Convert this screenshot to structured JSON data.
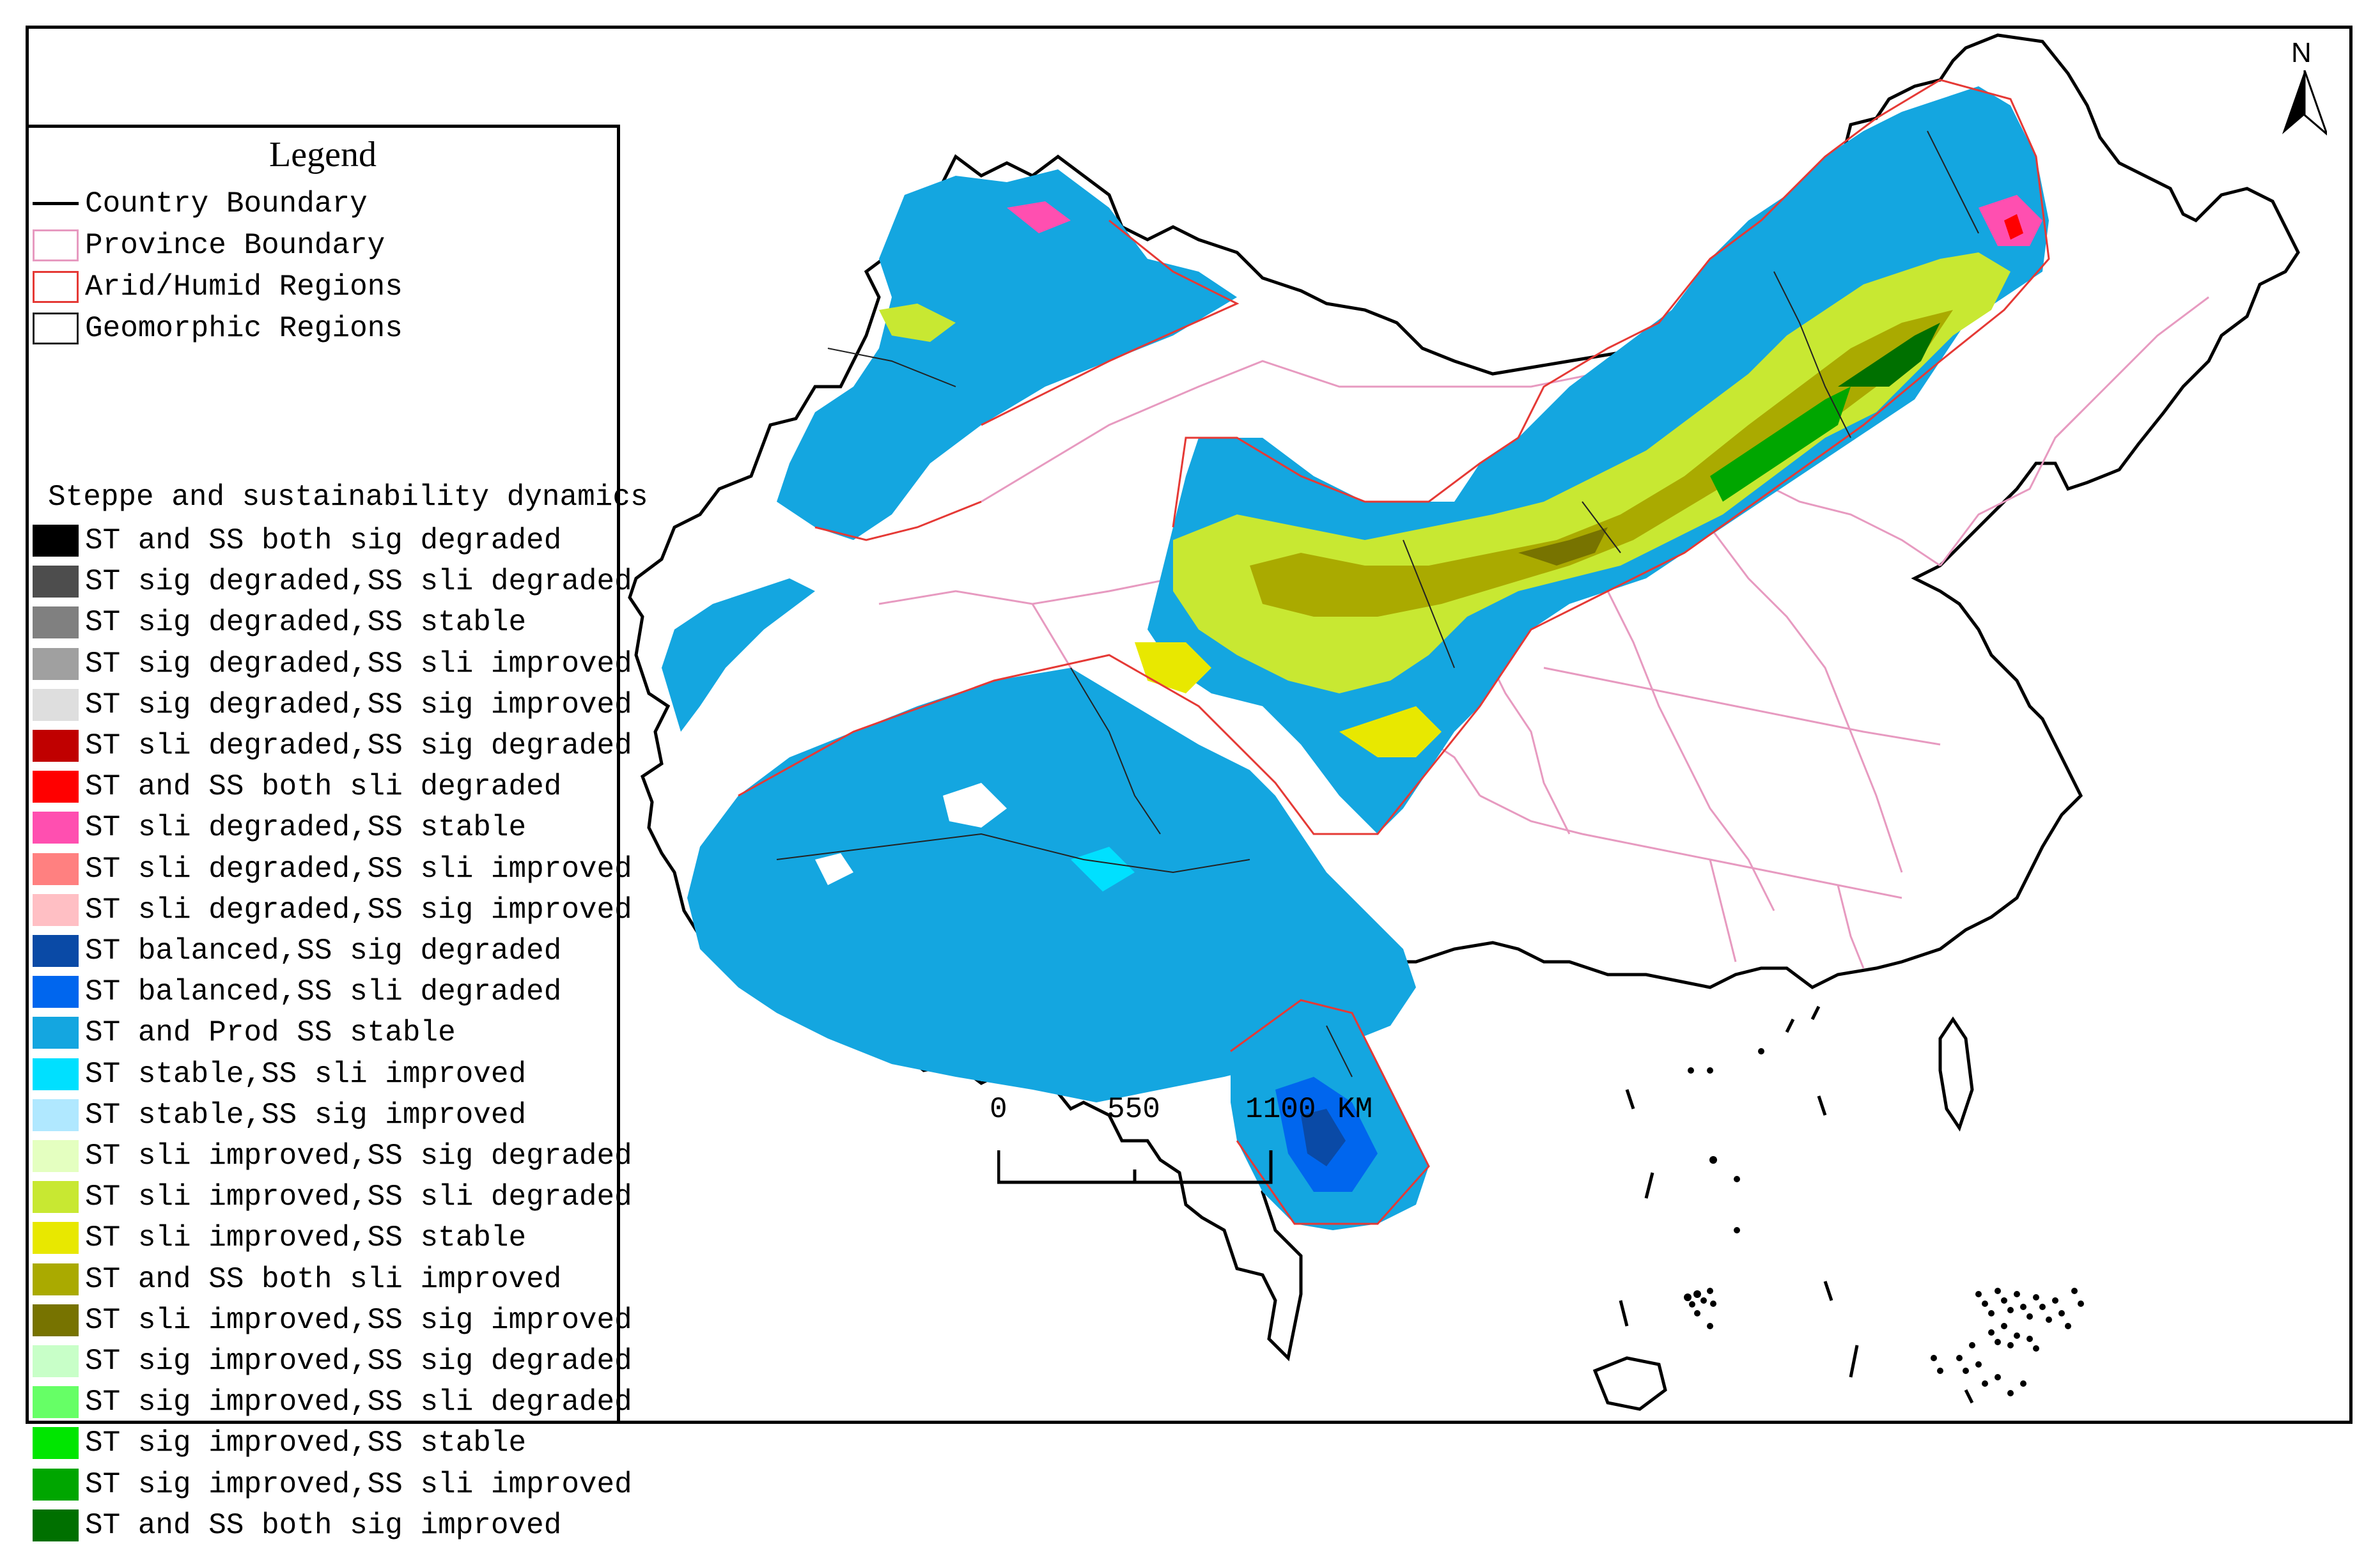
{
  "legend": {
    "title": "Legend",
    "boundaries": [
      {
        "label": "Country Boundary",
        "symbol": "line"
      },
      {
        "label": "Province Boundary",
        "symbol": "pbox"
      },
      {
        "label": "Arid/Humid Regions",
        "symbol": "rbox"
      },
      {
        "label": "Geomorphic Regions",
        "symbol": "kbox"
      }
    ],
    "dynamics_title": "Steppe and sustainability dynamics",
    "classes": [
      {
        "label": "ST and SS both sig degraded",
        "color": "#000000"
      },
      {
        "label": "ST sig degraded,SS sli degraded",
        "color": "#4d4d4d"
      },
      {
        "label": "ST sig degraded,SS stable",
        "color": "#808080"
      },
      {
        "label": "ST sig degraded,SS sli improved",
        "color": "#a0a0a0"
      },
      {
        "label": "ST sig degraded,SS sig improved",
        "color": "#dedede"
      },
      {
        "label": "ST sli degraded,SS sig degraded",
        "color": "#c00000"
      },
      {
        "label": "ST and SS both sli degraded",
        "color": "#ff0000"
      },
      {
        "label": "ST sli degraded,SS stable",
        "color": "#ff4fb0"
      },
      {
        "label": "ST sli degraded,SS sli improved",
        "color": "#ff8080"
      },
      {
        "label": "ST sli degraded,SS sig improved",
        "color": "#ffbfc4"
      },
      {
        "label": "ST balanced,SS sig degraded",
        "color": "#0a4aa6"
      },
      {
        "label": "ST balanced,SS sli degraded",
        "color": "#0066ee"
      },
      {
        "label": "ST and Prod SS  stable",
        "color": "#14a6e0"
      },
      {
        "label": "ST stable,SS sli improved",
        "color": "#00e0ff"
      },
      {
        "label": "ST stable,SS sig improved",
        "color": "#b0e8ff"
      },
      {
        "label": "ST sli improved,SS sig degraded",
        "color": "#e4ffc0"
      },
      {
        "label": "ST sli improved,SS sli degraded",
        "color": "#c8e832"
      },
      {
        "label": "ST sli improved,SS stable",
        "color": "#e8e800"
      },
      {
        "label": "ST and SS both sli improved",
        "color": "#aaaa00"
      },
      {
        "label": "ST sli improved,SS sig improved",
        "color": "#777300"
      },
      {
        "label": "ST sig improved,SS sig degraded",
        "color": "#c8ffc8"
      },
      {
        "label": "ST sig improved,SS sli degraded",
        "color": "#66ff66"
      },
      {
        "label": "ST sig improved,SS stable",
        "color": "#00e600"
      },
      {
        "label": "ST sig improved,SS sli improved",
        "color": "#00a600"
      },
      {
        "label": "ST and SS both sig improved",
        "color": "#007000"
      }
    ]
  },
  "scale_bar": {
    "ticks": [
      "0",
      "550",
      "1100"
    ],
    "unit": "KM"
  },
  "north_arrow": {
    "label": "N",
    "icon": "north-arrow-icon"
  }
}
